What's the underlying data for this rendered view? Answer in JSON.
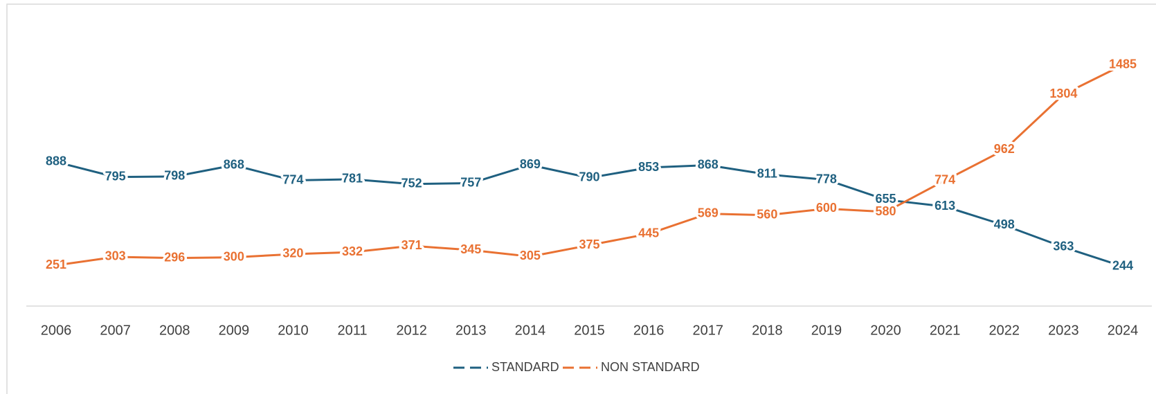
{
  "chart_data": {
    "type": "line",
    "categories": [
      "2006",
      "2007",
      "2008",
      "2009",
      "2010",
      "2011",
      "2012",
      "2013",
      "2014",
      "2015",
      "2016",
      "2017",
      "2018",
      "2019",
      "2020",
      "2021",
      "2022",
      "2023",
      "2024"
    ],
    "series": [
      {
        "name": "STANDARD",
        "color": "#1f6080",
        "values": [
          888,
          795,
          798,
          868,
          774,
          781,
          752,
          757,
          869,
          790,
          853,
          868,
          811,
          778,
          655,
          613,
          498,
          363,
          244
        ]
      },
      {
        "name": "NON STANDARD",
        "color": "#e97132",
        "values": [
          251,
          303,
          296,
          300,
          320,
          332,
          371,
          345,
          305,
          375,
          445,
          569,
          560,
          600,
          580,
          774,
          962,
          1304,
          1485
        ]
      }
    ],
    "ylim": [
      0,
      1800
    ],
    "legend": "bottom"
  }
}
